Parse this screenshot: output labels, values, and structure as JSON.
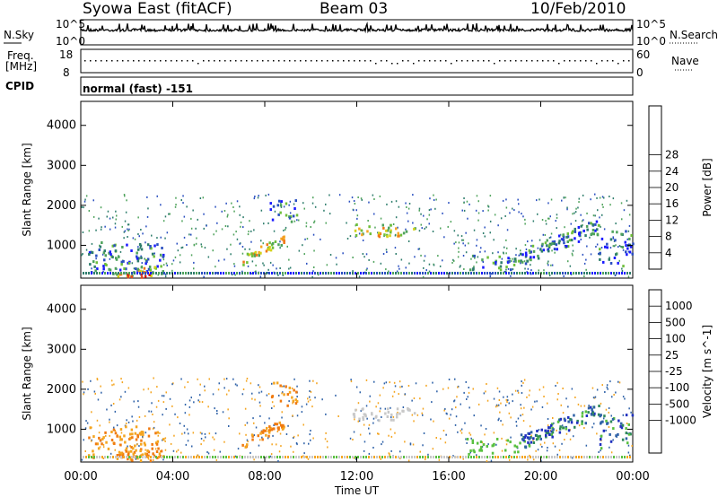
{
  "header": {
    "station": "Syowa East (fitACF)",
    "beam": "Beam 03",
    "date": "10/Feb/2010"
  },
  "top_panels": {
    "nsky_label": "N.Sky",
    "nsky_top": "10^5",
    "nsky_bottom": "10^0",
    "nsearch_label": "N.Search",
    "nsearch_top": "10^5",
    "nsearch_bottom": "10^0",
    "freq_label": "Freq.",
    "freq_unit": "[MHz]",
    "freq_top": "18",
    "freq_bottom": "8",
    "nave_label": "Nave",
    "nave_top": "60",
    "nave_bottom": "0",
    "cpid_label": "CPID",
    "cpid_value": "normal (fast) -151"
  },
  "chart_data": [
    {
      "type": "heatmap",
      "title": "",
      "ylabel": "Slant Range [km]",
      "ylim": [
        180,
        4600
      ],
      "yticks": [
        "1000",
        "2000",
        "3000",
        "4000"
      ],
      "colorbar_label": "Power [dB]",
      "colorbar_ticks": [
        "4",
        "8",
        "12",
        "16",
        "20",
        "24",
        "28"
      ],
      "colorbar_colors": [
        "#1a1aff",
        "#2a4fc0",
        "#2e7d6c",
        "#4fa35c",
        "#6fbf3a",
        "#d4d21a",
        "#f5a623",
        "#f07818",
        "#e8451a",
        "#d61a1a"
      ]
    },
    {
      "type": "heatmap",
      "title": "",
      "ylabel": "Slant Range [km]",
      "xlabel": "Time UT",
      "ylim": [
        180,
        4600
      ],
      "yticks": [
        "1000",
        "2000",
        "3000",
        "4000"
      ],
      "xticks": [
        "00:00",
        "04:00",
        "08:00",
        "12:00",
        "16:00",
        "20:00",
        "00:00"
      ],
      "colorbar_label": "Velocity [m s^-1]",
      "colorbar_ticks": [
        "1000",
        "500",
        "100",
        "25",
        "-25",
        "-100",
        "-500",
        "-1000"
      ],
      "colorbar_colors": [
        "#2030c0",
        "#2f62a8",
        "#2f8a5a",
        "#58c040",
        "#c8c8c8",
        "#c8c8c8",
        "#f4a520",
        "#f07a10",
        "#e84a10",
        "#e81010"
      ]
    }
  ]
}
